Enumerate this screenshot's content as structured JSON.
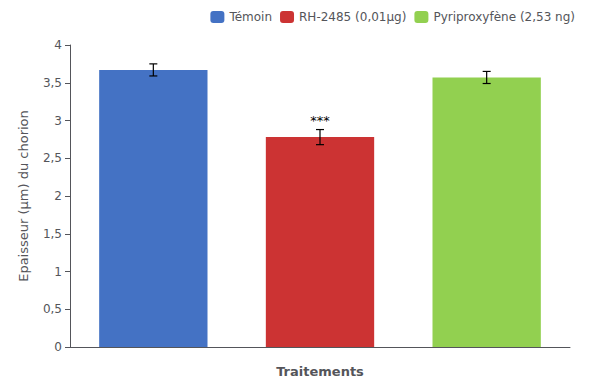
{
  "chart_data": {
    "type": "bar",
    "categories": [
      "Témoin",
      "RH-2485 (0,01µg)",
      "Pyriproxyfène (2,53 ng)"
    ],
    "values": [
      3.67,
      2.78,
      3.57
    ],
    "errors": [
      0.08,
      0.1,
      0.08
    ],
    "colors": [
      "#4472C4",
      "#CC3333",
      "#92D050"
    ],
    "xlabel": "Traitements",
    "ylabel": "Epaisseur (µm) du chorion",
    "ylim": [
      0,
      4
    ],
    "yticks": [
      0,
      {
        "value": 0.5,
        "label": "0,5"
      },
      1,
      {
        "value": 1.5,
        "label": "1,5"
      },
      2,
      {
        "value": 2.5,
        "label": "2,5"
      },
      3,
      {
        "value": 3.5,
        "label": "3,5"
      },
      4
    ],
    "annotations": [
      {
        "category": "RH-2485 (0,01µg)",
        "text": "***"
      }
    ],
    "grid": false,
    "legend": "upper right",
    "tick_labels": "y"
  }
}
